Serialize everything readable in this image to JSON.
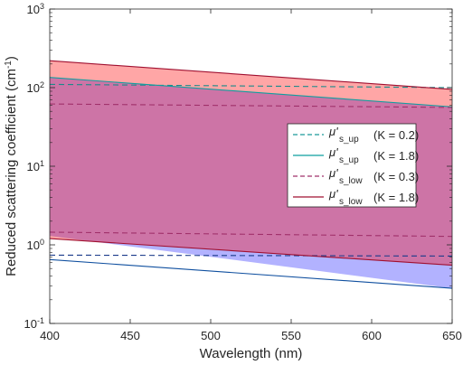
{
  "chart_data": {
    "type": "area",
    "x_scale": "linear",
    "y_scale": "log",
    "xlim": [
      400,
      650
    ],
    "ylim": [
      0.1,
      1000
    ],
    "xlabel": "Wavelength (nm)",
    "ylabel_main": "Reduced scattering coefficient (cm",
    "ylabel_sup": "-1",
    "ylabel_end": ")",
    "x_ticks": [
      {
        "value": 400,
        "label": "400"
      },
      {
        "value": 450,
        "label": "450"
      },
      {
        "value": 500,
        "label": "500"
      },
      {
        "value": 550,
        "label": "550"
      },
      {
        "value": 600,
        "label": "600"
      },
      {
        "value": 650,
        "label": "650"
      }
    ],
    "y_ticks": [
      {
        "value": 0.1,
        "base": "10",
        "exp": "-1"
      },
      {
        "value": 1,
        "base": "10",
        "exp": "0"
      },
      {
        "value": 10,
        "base": "10",
        "exp": "1"
      },
      {
        "value": 100,
        "base": "10",
        "exp": "2"
      },
      {
        "value": 1000,
        "base": "10",
        "exp": "3"
      }
    ],
    "x": [
      400,
      650
    ],
    "bands": [
      {
        "upper": [
          135,
          57
        ],
        "lower": [
          1.3,
          0.28
        ],
        "fill": "#0000ff",
        "opacity": 0.3
      },
      {
        "upper": [
          220,
          95
        ],
        "lower": [
          1.2,
          0.55
        ],
        "fill": "#ff0000",
        "opacity": 0.35
      }
    ],
    "series": [
      {
        "label": "up",
        "k": "(K = 0.2)",
        "color": "#1a8a8a",
        "dash": true,
        "values": [
          110,
          100
        ]
      },
      {
        "label": "up",
        "k": "(K = 1.8)",
        "color": "#0f9f9f",
        "dash": false,
        "values": [
          135,
          57
        ]
      },
      {
        "label": "up",
        "k": "(K = 0.2)",
        "color": "#1a3a8a",
        "dash": true,
        "values": [
          0.74,
          0.72
        ]
      },
      {
        "label": "up",
        "k": "(K = 1.8)",
        "color": "#0f4f9f",
        "dash": false,
        "values": [
          0.65,
          0.28
        ]
      },
      {
        "label": "low",
        "k": "(K = 0.3)",
        "color": "#a0306a",
        "dash": true,
        "values": [
          62,
          56
        ]
      },
      {
        "label": "low",
        "k": "(K = 0.3)",
        "color": "#a0306a",
        "dash": true,
        "values": [
          1.45,
          1.28
        ]
      },
      {
        "label": "low",
        "k": "(K = 1.8)",
        "color": "#a01030",
        "dash": false,
        "values": [
          220,
          95
        ]
      },
      {
        "label": "low",
        "k": "(K = 1.8)",
        "color": "#a01030",
        "dash": false,
        "values": [
          1.2,
          0.55
        ]
      }
    ],
    "legend": {
      "placement": "center-right",
      "symbol": "μ'",
      "entries": [
        {
          "sub": "s_up",
          "k": "(K = 0.2)",
          "color": "#1a9a9a",
          "dash": true
        },
        {
          "sub": "s_up",
          "k": "(K = 1.8)",
          "color": "#0f9f9f",
          "dash": false
        },
        {
          "sub": "s_low",
          "k": "(K = 0.3)",
          "color": "#a0306a",
          "dash": true
        },
        {
          "sub": "s_low",
          "k": "(K = 1.8)",
          "color": "#a01030",
          "dash": false
        }
      ]
    }
  }
}
